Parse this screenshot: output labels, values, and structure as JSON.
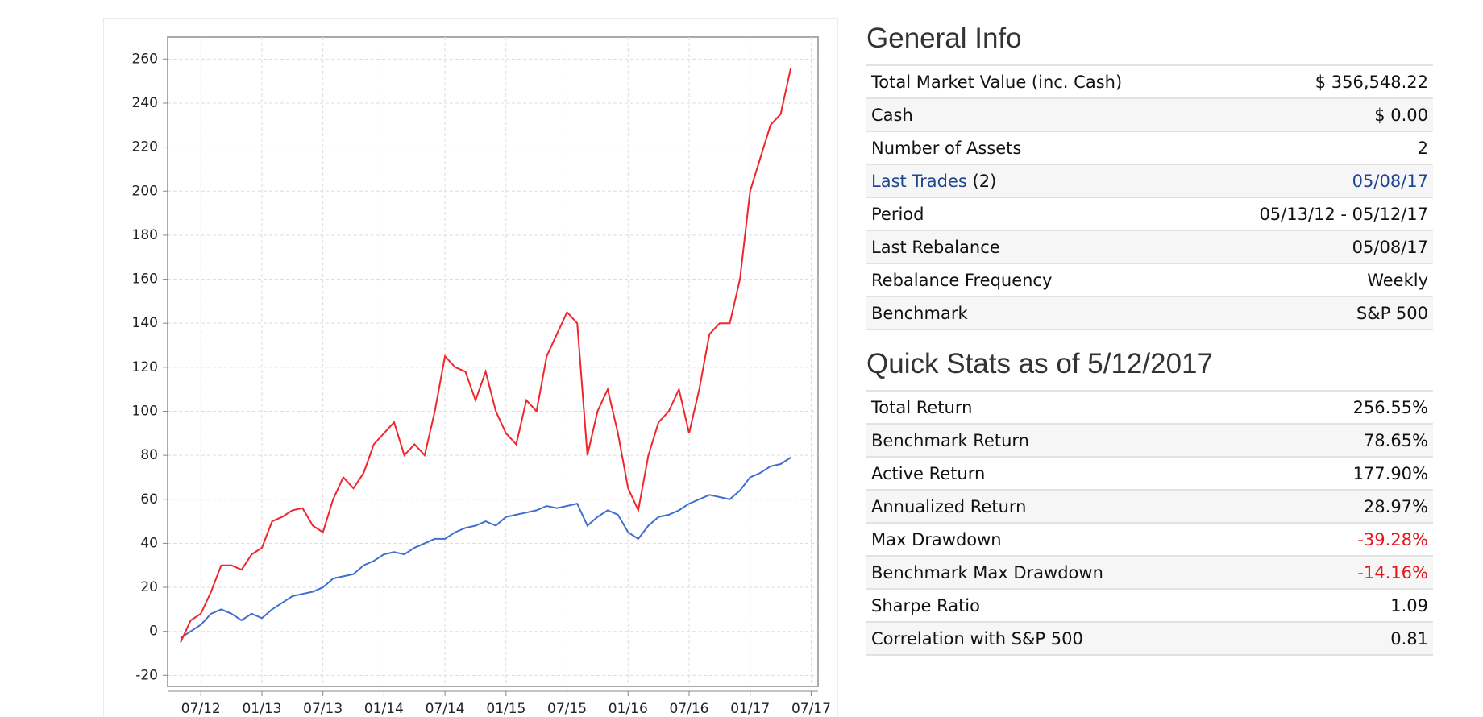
{
  "chart_data": {
    "type": "line",
    "categories": [
      null,
      null,
      "07/12",
      null,
      null,
      null,
      null,
      null,
      "01/13",
      null,
      null,
      null,
      null,
      null,
      "07/13",
      null,
      null,
      null,
      null,
      null,
      "01/14",
      null,
      null,
      null,
      null,
      null,
      "07/14",
      null,
      null,
      null,
      null,
      null,
      "01/15",
      null,
      null,
      null,
      null,
      null,
      "07/15",
      null,
      null,
      null,
      null,
      null,
      "01/16",
      null,
      null,
      null,
      null,
      null,
      "07/16",
      null,
      null,
      null,
      null,
      null,
      "01/17",
      null,
      null,
      null,
      null,
      null,
      "07/17"
    ],
    "series": [
      {
        "color": "#f0262b",
        "values": [
          -5,
          5,
          8,
          18,
          30,
          30,
          28,
          35,
          38,
          50,
          52,
          55,
          56,
          48,
          45,
          60,
          70,
          65,
          72,
          85,
          90,
          95,
          80,
          85,
          80,
          100,
          125,
          120,
          118,
          105,
          118,
          100,
          90,
          85,
          105,
          100,
          125,
          135,
          145,
          140,
          80,
          100,
          110,
          90,
          65,
          55,
          80,
          95,
          100,
          110,
          90,
          110,
          135,
          140,
          140,
          160,
          200,
          215,
          230,
          235,
          256,
          null,
          null
        ]
      },
      {
        "color": "#3f6fcf",
        "values": [
          -3,
          0,
          3,
          8,
          10,
          8,
          5,
          8,
          6,
          10,
          13,
          16,
          17,
          18,
          20,
          24,
          25,
          26,
          30,
          32,
          35,
          36,
          35,
          38,
          40,
          42,
          42,
          45,
          47,
          48,
          50,
          48,
          52,
          53,
          54,
          55,
          57,
          56,
          57,
          58,
          48,
          52,
          55,
          53,
          45,
          42,
          48,
          52,
          53,
          55,
          58,
          60,
          62,
          61,
          60,
          64,
          70,
          72,
          75,
          76,
          79,
          null,
          null
        ]
      }
    ],
    "ylim": [
      -25,
      270
    ],
    "yticks": [
      -20,
      0,
      20,
      40,
      60,
      80,
      100,
      120,
      140,
      160,
      180,
      200,
      220,
      240,
      260
    ],
    "grid": true
  },
  "general_info": {
    "title": "General Info",
    "rows": [
      [
        "Total Market Value (inc. Cash)",
        "$ 356,548.22"
      ],
      [
        "Cash",
        "$ 0.00"
      ],
      [
        "Number of Assets",
        "2"
      ]
    ],
    "last_trades": {
      "label": "Last Trades",
      "count": "(2)",
      "value": "05/08/17",
      "link_color": "#1f4690"
    },
    "rows_after": [
      [
        "Period",
        "05/13/12 - 05/12/17"
      ],
      [
        "Last Rebalance",
        "05/08/17"
      ],
      [
        "Rebalance Frequency",
        "Weekly"
      ],
      [
        "Benchmark",
        "S&P 500"
      ]
    ]
  },
  "quick_stats": {
    "title": "Quick Stats as of 5/12/2017",
    "negative_color": "#e8141c",
    "rows": [
      [
        "Total Return",
        "256.55%"
      ],
      [
        "Benchmark Return",
        "78.65%"
      ],
      [
        "Active Return",
        "177.90%"
      ],
      [
        "Annualized Return",
        "28.97%"
      ],
      [
        "Max Drawdown",
        "-39.28%"
      ],
      [
        "Benchmark Max Drawdown",
        "-14.16%"
      ],
      [
        "Sharpe Ratio",
        "1.09"
      ],
      [
        "Correlation with S&P 500",
        "0.81"
      ]
    ]
  }
}
